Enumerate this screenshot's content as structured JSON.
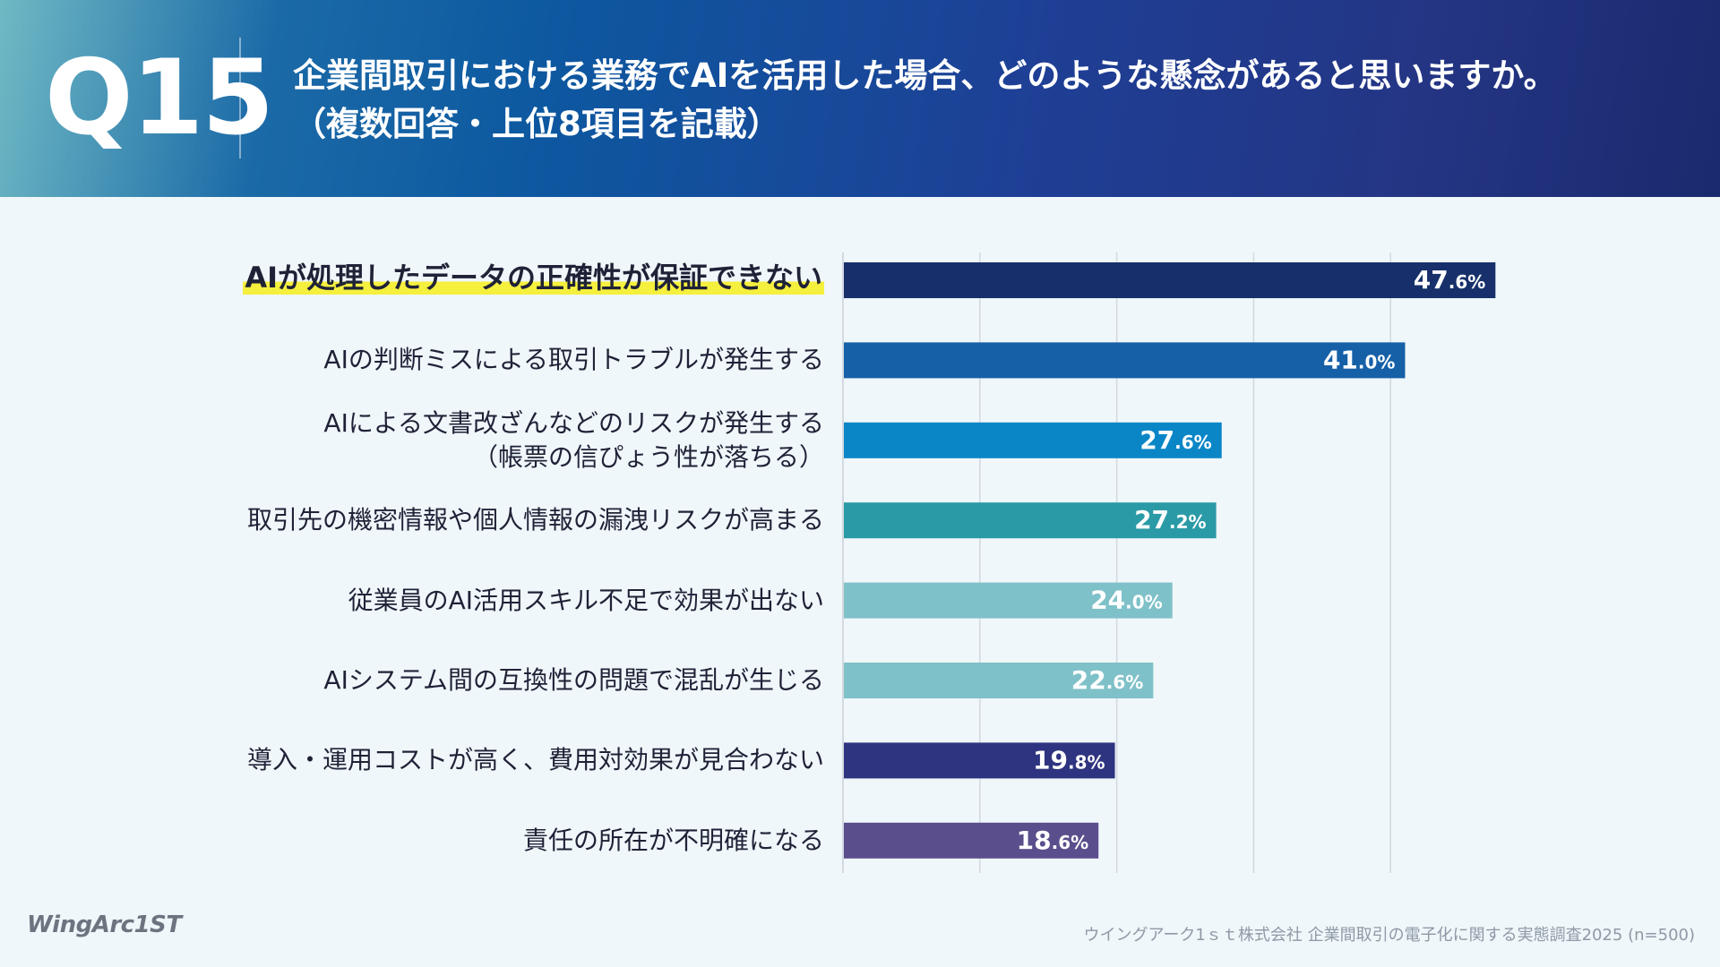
{
  "header": {
    "qnum": "Q15",
    "title_line1": "企業間取引における業務でAIを活用した場合、どのような懸念があると思いますか。",
    "title_line2": "（複数回答・上位8項目を記載）"
  },
  "chart_data": {
    "type": "bar",
    "orientation": "horizontal",
    "title": "企業間取引における業務でAIを活用した場合、どのような懸念があると思いますか。（複数回答・上位8項目を記載）",
    "xlim": [
      0,
      50
    ],
    "grid": true,
    "unit": "%",
    "categories": [
      "AIが処理したデータの正確性が保証できない",
      "AIの判断ミスによる取引トラブルが発生する",
      "AIによる文書改ざんなどのリスクが発生する（帳票の信ぴょう性が落ちる）",
      "取引先の機密情報や個人情報の漏洩リスクが高まる",
      "従業員のAI活用スキル不足で効果が出ない",
      "AIシステム間の互換性の問題で混乱が生じる",
      "導入・運用コストが高く、費用対効果が見合わない",
      "責任の所在が不明確になる"
    ],
    "values": [
      47.6,
      41.0,
      27.6,
      27.2,
      24.0,
      22.6,
      19.8,
      18.6
    ]
  },
  "labels": [
    {
      "lines": [
        "AIが処理したデータの正確性が保証できない"
      ]
    },
    {
      "lines": [
        "AIの判断ミスによる取引トラブルが発生する"
      ]
    },
    {
      "lines": [
        "AIによる文書改ざんなどのリスクが発生する",
        "（帳票の信ぴょう性が落ちる）"
      ]
    },
    {
      "lines": [
        "取引先の機密情報や個人情報の漏洩リスクが高まる"
      ]
    },
    {
      "lines": [
        "従業員のAI活用スキル不足で効果が出ない"
      ]
    },
    {
      "lines": [
        "AIシステム間の互換性の問題で混乱が生じる"
      ]
    },
    {
      "lines": [
        "導入・運用コストが高く、費用対効果が見合わない"
      ]
    },
    {
      "lines": [
        "責任の所在が不明確になる"
      ]
    }
  ],
  "value_labels": [
    {
      "int": "47",
      "dec": ".6%"
    },
    {
      "int": "41",
      "dec": ".0%"
    },
    {
      "int": "27",
      "dec": ".6%"
    },
    {
      "int": "27",
      "dec": ".2%"
    },
    {
      "int": "24",
      "dec": ".0%"
    },
    {
      "int": "22",
      "dec": ".6%"
    },
    {
      "int": "19",
      "dec": ".8%"
    },
    {
      "int": "18",
      "dec": ".6%"
    }
  ],
  "colors": {
    "bars": [
      "#17306b",
      "#1660a8",
      "#0a86c7",
      "#2a9ba6",
      "#7fc1c8",
      "#7fc1c8",
      "#2f3480",
      "#5a4e8c"
    ],
    "grid": "#d3d9e0",
    "highlight": "#f5ef3e"
  },
  "footer": {
    "logo": "WingArc1ST",
    "source": "ウイングアーク1ｓｔ株式会社 企業間取引の電子化に関する実態調査2025 (n=500)"
  }
}
